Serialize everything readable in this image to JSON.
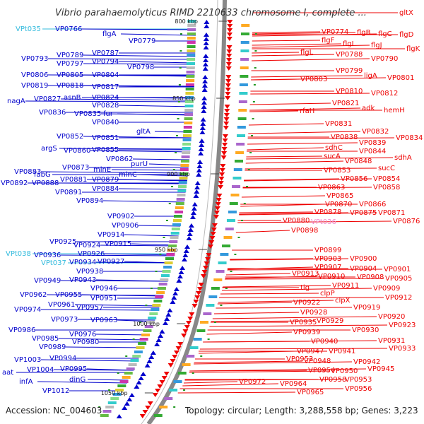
{
  "title": "Vibrio parahaemolyticus RIMD 2210633 chromosome I, complete ...",
  "footer": {
    "accession": "Accession: NC_004603",
    "summary": "Topology: circular; Length: 3,288,558 bp; Genes: 3,223"
  },
  "colors": {
    "forward": "#0000cc",
    "reverse": "#ee0000",
    "trna": "#33bbdd",
    "trna_reverse": "#ee88cc",
    "backbone": "#888888",
    "tick": "#229922"
  },
  "kbp_marks": [
    "800 kbp",
    "850 kbp",
    "900 kbp",
    "950 kbp",
    "1000 kbp",
    "1050 kbp"
  ],
  "left_labels": [
    "VPt035",
    "VP0766",
    "flgA",
    "VP0779",
    "VP0793",
    "VP0789",
    "VP0787",
    "VP0797",
    "VP0794",
    "VP0798",
    "VP0806",
    "VP0805",
    "VP0804",
    "VP0819",
    "VP0818",
    "VP0817",
    "nagA",
    "VP0827",
    "asnB",
    "VP0824",
    "VP0828",
    "VP0836",
    "VP0835",
    "fur",
    "VP0840",
    "gltA",
    "VP0852",
    "VP0851",
    "argS",
    "VP0860",
    "VP0855",
    "VP0862",
    "purU",
    "VP0873",
    "minE",
    "VP0883",
    "fabG",
    "VP0881",
    "minC",
    "VP0892",
    "VP0888",
    "VP0879",
    "VP0891",
    "VP0884",
    "VP0894",
    "VP0902",
    "VP0906",
    "VP0914",
    "VP0925",
    "VP0924",
    "VP0915",
    "VPt038",
    "VP0936",
    "VP0926",
    "VPt037",
    "VP0934",
    "VP0927",
    "VP0938",
    "VP0949",
    "VP0943",
    "VP0946",
    "VP0962",
    "VP0955",
    "VP0951",
    "VP0974",
    "VP0961",
    "VP0957",
    "VP0973",
    "VP0963",
    "VP0986",
    "VP0976",
    "VP0985",
    "VP0980",
    "VP0989",
    "VP1003",
    "VP0994",
    "VP1004",
    "VP0995",
    "aat",
    "dinG",
    "infA",
    "VP1012"
  ],
  "right_labels": [
    "gltX",
    "VP0774",
    "flgB",
    "flgC",
    "flgD",
    "flgF",
    "flgI",
    "flgJ",
    "flgK",
    "flgL",
    "VP0788",
    "VP0790",
    "VP0799",
    "VP0803",
    "ligA",
    "VP0801",
    "VP0810",
    "VP0812",
    "VP0821",
    "adk",
    "hemH",
    "rfaH",
    "VP0831",
    "VP0832",
    "VP0838",
    "VP0834",
    "VP0839",
    "sdhC",
    "VP0844",
    "sucA",
    "sdhA",
    "VP0848",
    "VP0853",
    "sucC",
    "VP0856",
    "VP0854",
    "VP0863",
    "VP0858",
    "VP0865",
    "VP0870",
    "VP0866",
    "VP0878",
    "VP0875",
    "VP0871",
    "VP0880",
    "VPt036",
    "VP0876",
    "VP0898",
    "VP0899",
    "VP0903",
    "VP0900",
    "VP0907",
    "VP0904",
    "VP0901",
    "VP0913",
    "VP0910",
    "VP0908",
    "VP0905",
    "VP0911",
    "VP0909",
    "tig",
    "clpP",
    "VP0922",
    "clpX",
    "VP0912",
    "VP0919",
    "VP0928",
    "VP0920",
    "VP0935",
    "VP0929",
    "VP0923",
    "VP0939",
    "VP0930",
    "VP0940",
    "VP0931",
    "VP0947",
    "VP0941",
    "VP0933",
    "VP0948",
    "VP0942",
    "VP0952",
    "VP0954",
    "VP0950",
    "VP0945",
    "VP0958",
    "VP0953",
    "VP0972",
    "VP0964",
    "VP0956",
    "VP0965"
  ]
}
